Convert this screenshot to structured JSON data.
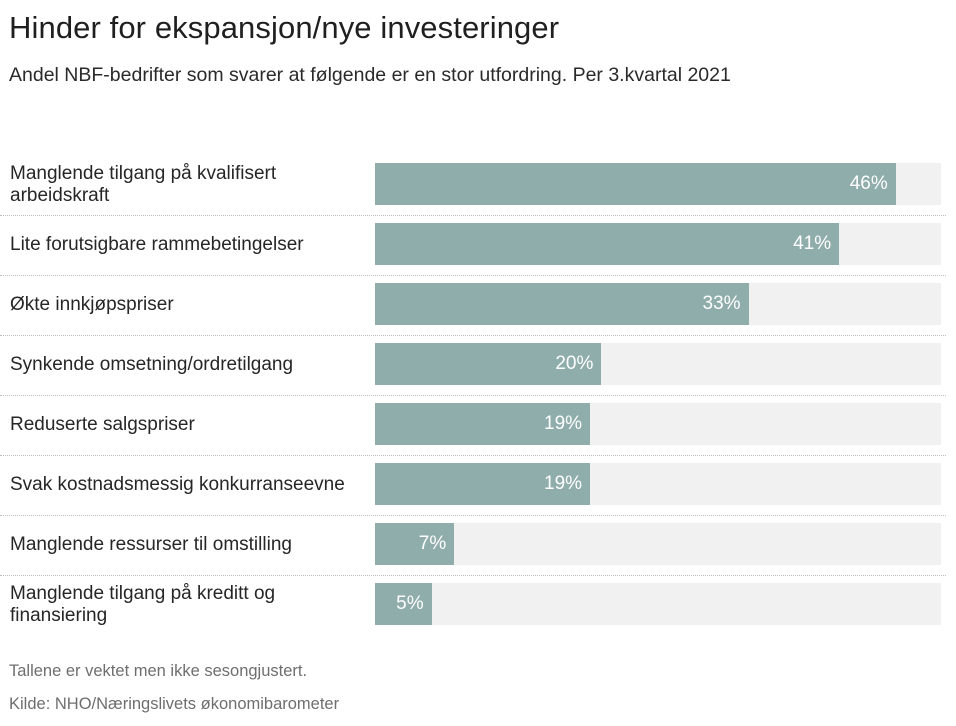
{
  "chart_data": {
    "type": "bar",
    "orientation": "horizontal",
    "title": "Hinder for ekspansjon/nye investeringer",
    "subtitle": "Andel NBF-bedrifter som svarer at følgende er en stor utfordring. Per 3.kvartal 2021",
    "categories": [
      "Manglende tilgang på kvalifisert arbeidskraft",
      "Lite forutsigbare rammebetingelser",
      "Økte innkjøpspriser",
      "Synkende omsetning/ordretilgang",
      "Reduserte salgspriser",
      "Svak kostnadsmessig konkurranseevne",
      "Manglende ressurser til omstilling",
      "Manglende tilgang på kreditt og finansiering"
    ],
    "values": [
      46,
      41,
      33,
      20,
      19,
      19,
      7,
      5
    ],
    "value_labels": [
      "46%",
      "41%",
      "33%",
      "20%",
      "19%",
      "19%",
      "7%",
      "5%"
    ],
    "xlim": [
      0,
      50
    ],
    "xlabel": "",
    "ylabel": "",
    "grid": false,
    "bar_color": "#8fadab",
    "track_color": "#f1f1f1",
    "note": "Tallene er vektet men ikke sesongjustert.",
    "source": "Kilde: NHO/Næringslivets økonomibarometer"
  }
}
